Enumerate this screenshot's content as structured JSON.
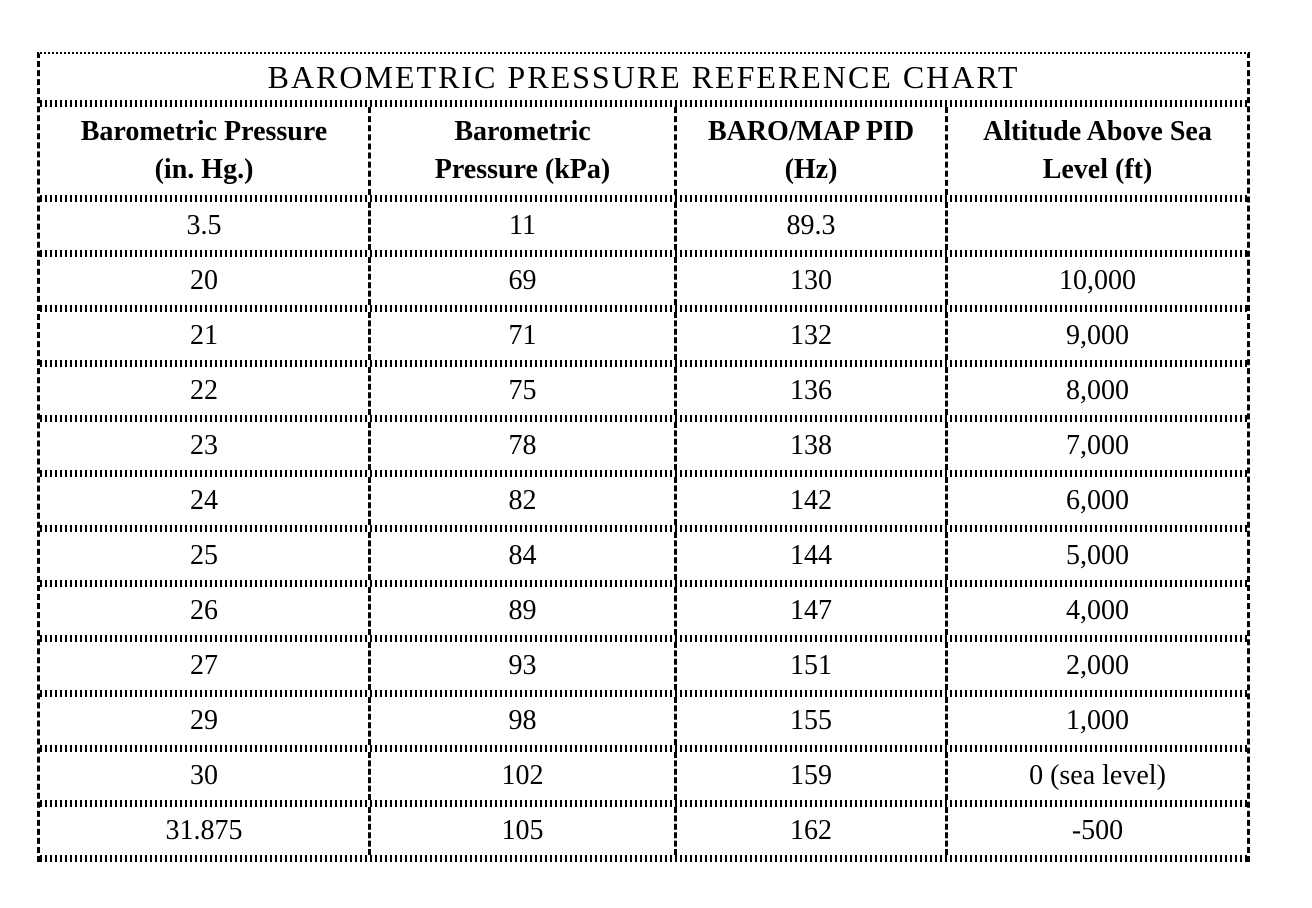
{
  "page": {
    "title": "BAROMETRIC PRESSURE REFERENCE CHART",
    "background": "#ffffff",
    "ink": "#000000"
  },
  "table": {
    "headers": [
      {
        "line1": "Barometric Pressure",
        "line2": "(in. Hg.)"
      },
      {
        "line1": "Barometric",
        "line2": "Pressure (kPa)"
      },
      {
        "line1": "BARO/MAP PID",
        "line2": "(Hz)"
      },
      {
        "line1": "Altitude Above Sea",
        "line2": "Level (ft)"
      }
    ],
    "rows": [
      [
        "3.5",
        "11",
        "89.3",
        ""
      ],
      [
        "20",
        "69",
        "130",
        "10,000"
      ],
      [
        "21",
        "71",
        "132",
        "9,000"
      ],
      [
        "22",
        "75",
        "136",
        "8,000"
      ],
      [
        "23",
        "78",
        "138",
        "7,000"
      ],
      [
        "24",
        "82",
        "142",
        "6,000"
      ],
      [
        "25",
        "84",
        "144",
        "5,000"
      ],
      [
        "26",
        "89",
        "147",
        "4,000"
      ],
      [
        "27",
        "93",
        "151",
        "2,000"
      ],
      [
        "29",
        "98",
        "155",
        "1,000"
      ],
      [
        "30",
        "102",
        "159",
        "0 (sea level)"
      ],
      [
        "31.875",
        "105",
        "162",
        "-500"
      ]
    ]
  },
  "chart_data": {
    "type": "table",
    "title": "BAROMETRIC PRESSURE REFERENCE CHART",
    "columns": [
      "Barometric Pressure (in. Hg.)",
      "Barometric Pressure (kPa)",
      "BARO/MAP PID (Hz)",
      "Altitude Above Sea Level (ft)"
    ],
    "rows": [
      [
        3.5,
        11,
        89.3,
        null
      ],
      [
        20,
        69,
        130,
        10000
      ],
      [
        21,
        71,
        132,
        9000
      ],
      [
        22,
        75,
        136,
        8000
      ],
      [
        23,
        78,
        138,
        7000
      ],
      [
        24,
        82,
        142,
        6000
      ],
      [
        25,
        84,
        144,
        5000
      ],
      [
        26,
        89,
        147,
        4000
      ],
      [
        27,
        93,
        151,
        2000
      ],
      [
        29,
        98,
        155,
        1000
      ],
      [
        30,
        102,
        159,
        0
      ],
      [
        31.875,
        105,
        162,
        -500
      ]
    ],
    "notes": "Row with 0 ft is labeled '0 (sea level)'; first row has blank altitude cell.",
    "layout": "Scanned black-on-white reference table with dotted/dashed hatched rules."
  }
}
